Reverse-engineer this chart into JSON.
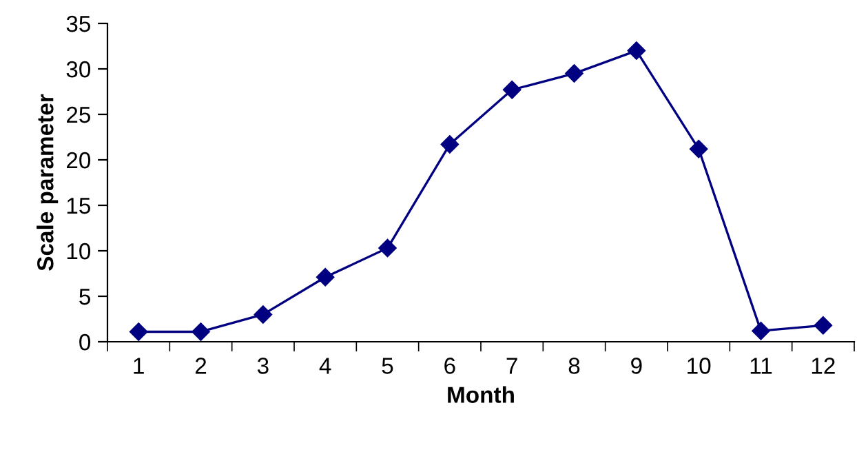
{
  "chart_data": {
    "type": "line",
    "xlabel": "Month",
    "ylabel": "Scale parameter",
    "categories": [
      "1",
      "2",
      "3",
      "4",
      "5",
      "6",
      "7",
      "8",
      "9",
      "10",
      "11",
      "12"
    ],
    "series": [
      {
        "color": "#000080",
        "values": [
          1.1,
          1.1,
          3.0,
          7.1,
          10.3,
          21.7,
          27.7,
          29.5,
          32.0,
          21.2,
          1.2,
          1.8
        ]
      }
    ],
    "ylim": [
      0,
      35
    ],
    "yticks": [
      0,
      5,
      10,
      15,
      20,
      25,
      30,
      35
    ],
    "marker": "diamond",
    "line_style": "solid",
    "grid": false,
    "legend": false
  }
}
